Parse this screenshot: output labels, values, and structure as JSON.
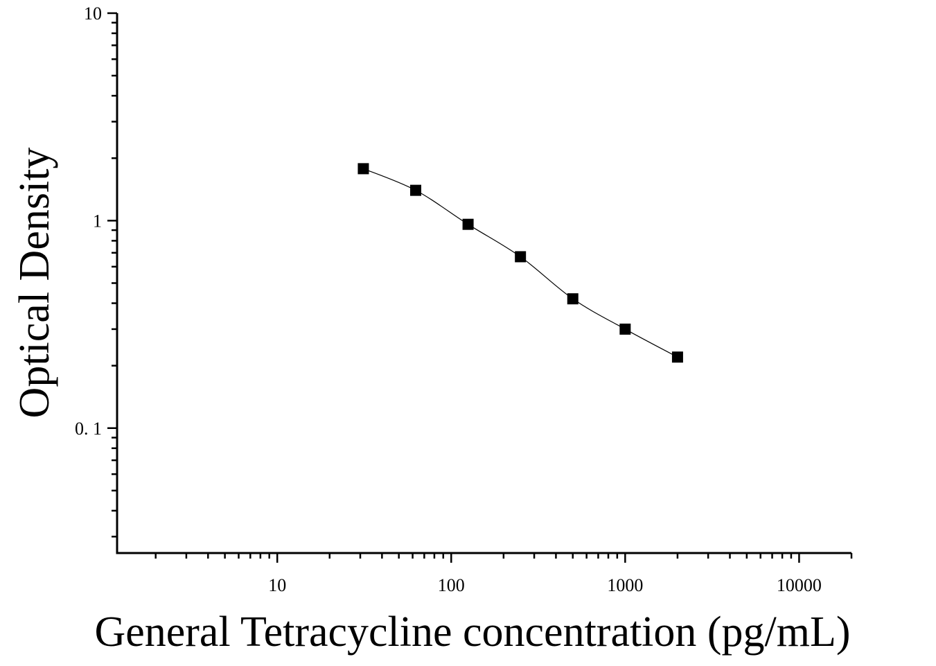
{
  "chart_data": {
    "type": "scatter",
    "xlabel": "General Tetracycline concentration (pg/mL)",
    "ylabel": "Optical Density",
    "x_scale": "log",
    "y_scale": "log",
    "xlim": [
      1.2,
      20000
    ],
    "ylim": [
      0.025,
      10
    ],
    "x_tick_labels": [
      "10",
      "100",
      "1000",
      "10000"
    ],
    "x_tick_values": [
      10,
      100,
      1000,
      10000
    ],
    "y_tick_labels": [
      "0. 1",
      "1",
      "10"
    ],
    "y_tick_values": [
      0.1,
      1,
      10
    ],
    "grid": false,
    "series": [
      {
        "marker": "square",
        "color": "#000000",
        "x": [
          31.25,
          62.5,
          125,
          250,
          500,
          1000,
          2000
        ],
        "y": [
          1.78,
          1.4,
          0.96,
          0.67,
          0.42,
          0.3,
          0.22
        ]
      }
    ],
    "fit_curve": {
      "type": "4PL",
      "color": "#000000",
      "x_range": [
        31.25,
        2000
      ]
    }
  }
}
